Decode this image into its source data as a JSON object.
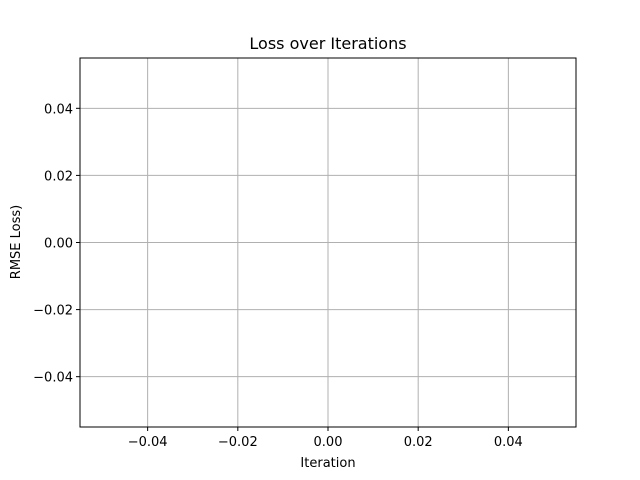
{
  "chart_data": {
    "type": "line",
    "title": "Loss over Iterations",
    "xlabel": "Iteration",
    "ylabel": "RMSE Loss)",
    "xlim": [
      -0.055,
      0.055
    ],
    "ylim": [
      -0.055,
      0.055
    ],
    "x_ticks": [
      -0.04,
      -0.02,
      0.0,
      0.02,
      0.04
    ],
    "x_tick_labels": [
      "−0.04",
      "−0.02",
      "0.00",
      "0.02",
      "0.04"
    ],
    "y_ticks": [
      -0.04,
      -0.02,
      0.0,
      0.02,
      0.04
    ],
    "y_tick_labels": [
      "−0.04",
      "−0.02",
      "0.00",
      "0.02",
      "0.04"
    ],
    "grid": true,
    "series": [
      {
        "x": [],
        "y": []
      }
    ],
    "colors": {
      "grid": "#b0b0b0",
      "axes": "#000000",
      "line": "#1f77b4"
    }
  }
}
